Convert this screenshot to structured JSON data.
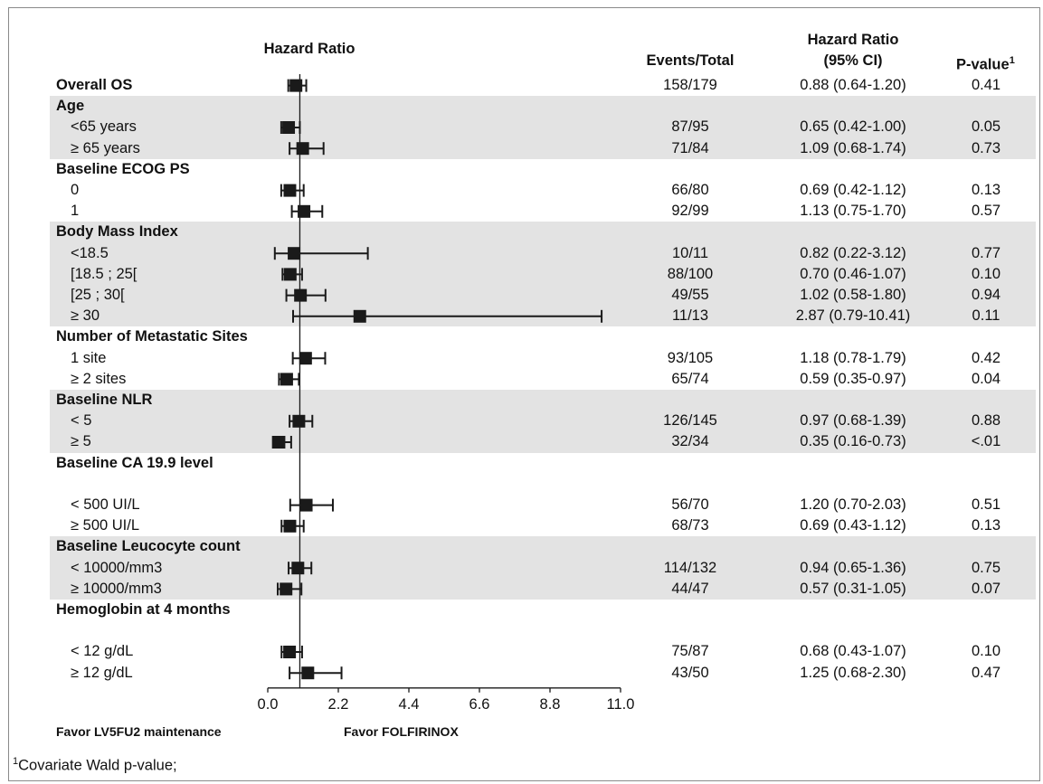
{
  "headers": {
    "hazard_ratio_plot": "Hazard Ratio",
    "events_total": "Events/Total",
    "hr_ci_line1": "Hazard Ratio",
    "hr_ci_line2": "(95% CI)",
    "p_value": "P-value",
    "p_value_sup": "1"
  },
  "chart_data": {
    "type": "forest",
    "x_ticks": [
      "0.0",
      "2.2",
      "4.4",
      "6.6",
      "8.8",
      "11.0"
    ],
    "xlim": [
      0,
      11
    ],
    "reference_line": 1.0,
    "favor_left": "Favor LV5FU2 maintenance",
    "favor_right": "Favor FOLFIRINOX",
    "rows": [
      {
        "label": "Overall OS",
        "kind": "group",
        "hr": 0.88,
        "lo": 0.64,
        "hi": 1.2,
        "events": "158/179",
        "ci_text": "0.88 (0.64-1.20)",
        "p": "0.41",
        "shaded": false
      },
      {
        "label": "Age",
        "kind": "group",
        "shaded": true
      },
      {
        "label": "<65 years",
        "kind": "sub",
        "hr": 0.65,
        "lo": 0.42,
        "hi": 1.0,
        "events": "87/95",
        "ci_text": "0.65 (0.42-1.00)",
        "p": "0.05",
        "shaded": true
      },
      {
        "label": "≥ 65 years",
        "kind": "sub",
        "hr": 1.09,
        "lo": 0.68,
        "hi": 1.74,
        "events": "71/84",
        "ci_text": "1.09 (0.68-1.74)",
        "p": "0.73",
        "shaded": true
      },
      {
        "label": "Baseline ECOG PS",
        "kind": "group",
        "shaded": false
      },
      {
        "label": "0",
        "kind": "sub",
        "hr": 0.69,
        "lo": 0.42,
        "hi": 1.12,
        "events": "66/80",
        "ci_text": "0.69 (0.42-1.12)",
        "p": "0.13",
        "shaded": false
      },
      {
        "label": "1",
        "kind": "sub",
        "hr": 1.13,
        "lo": 0.75,
        "hi": 1.7,
        "events": "92/99",
        "ci_text": "1.13 (0.75-1.70)",
        "p": "0.57",
        "shaded": false
      },
      {
        "label": "Body Mass Index",
        "kind": "group",
        "shaded": true
      },
      {
        "label": "<18.5",
        "kind": "sub",
        "hr": 0.82,
        "lo": 0.22,
        "hi": 3.12,
        "events": "10/11",
        "ci_text": "0.82 (0.22-3.12)",
        "p": "0.77",
        "shaded": true
      },
      {
        "label": "[18.5 ; 25[",
        "kind": "sub",
        "hr": 0.7,
        "lo": 0.46,
        "hi": 1.07,
        "events": "88/100",
        "ci_text": "0.70 (0.46-1.07)",
        "p": "0.10",
        "shaded": true
      },
      {
        "label": "[25 ; 30[",
        "kind": "sub",
        "hr": 1.02,
        "lo": 0.58,
        "hi": 1.8,
        "events": "49/55",
        "ci_text": "1.02 (0.58-1.80)",
        "p": "0.94",
        "shaded": true
      },
      {
        "label": "≥ 30",
        "kind": "sub",
        "hr": 2.87,
        "lo": 0.79,
        "hi": 10.41,
        "events": "11/13",
        "ci_text": "2.87 (0.79-10.41)",
        "p": "0.11",
        "shaded": true
      },
      {
        "label": "Number of Metastatic Sites",
        "kind": "group",
        "shaded": false
      },
      {
        "label": "1 site",
        "kind": "sub",
        "hr": 1.18,
        "lo": 0.78,
        "hi": 1.79,
        "events": "93/105",
        "ci_text": "1.18 (0.78-1.79)",
        "p": "0.42",
        "shaded": false
      },
      {
        "label": "≥ 2 sites",
        "kind": "sub",
        "hr": 0.59,
        "lo": 0.35,
        "hi": 0.97,
        "events": "65/74",
        "ci_text": "0.59 (0.35-0.97)",
        "p": "0.04",
        "shaded": false
      },
      {
        "label": "Baseline NLR",
        "kind": "group",
        "shaded": true
      },
      {
        "label": "< 5",
        "kind": "sub",
        "hr": 0.97,
        "lo": 0.68,
        "hi": 1.39,
        "events": "126/145",
        "ci_text": "0.97 (0.68-1.39)",
        "p": "0.88",
        "shaded": true
      },
      {
        "label": "≥ 5",
        "kind": "sub",
        "hr": 0.35,
        "lo": 0.16,
        "hi": 0.73,
        "events": "32/34",
        "ci_text": "0.35 (0.16-0.73)",
        "p": "<.01",
        "shaded": true
      },
      {
        "label": "Baseline CA 19.9 level",
        "kind": "group",
        "shaded": false
      },
      {
        "label": "",
        "kind": "blank",
        "shaded": false
      },
      {
        "label": "< 500 UI/L",
        "kind": "sub",
        "hr": 1.2,
        "lo": 0.7,
        "hi": 2.03,
        "events": "56/70",
        "ci_text": "1.20 (0.70-2.03)",
        "p": "0.51",
        "shaded": false
      },
      {
        "label": "≥ 500 UI/L",
        "kind": "sub",
        "hr": 0.69,
        "lo": 0.43,
        "hi": 1.12,
        "events": "68/73",
        "ci_text": "0.69 (0.43-1.12)",
        "p": "0.13",
        "shaded": false
      },
      {
        "label": "Baseline Leucocyte count",
        "kind": "group",
        "shaded": true
      },
      {
        "label": "< 10000/mm3",
        "kind": "sub",
        "hr": 0.94,
        "lo": 0.65,
        "hi": 1.36,
        "events": "114/132",
        "ci_text": "0.94 (0.65-1.36)",
        "p": "0.75",
        "shaded": true
      },
      {
        "label": "≥ 10000/mm3",
        "kind": "sub",
        "hr": 0.57,
        "lo": 0.31,
        "hi": 1.05,
        "events": "44/47",
        "ci_text": "0.57 (0.31-1.05)",
        "p": "0.07",
        "shaded": true
      },
      {
        "label": "Hemoglobin at 4 months",
        "kind": "group",
        "shaded": false
      },
      {
        "label": "",
        "kind": "blank",
        "shaded": false
      },
      {
        "label": "< 12 g/dL",
        "kind": "sub",
        "hr": 0.68,
        "lo": 0.43,
        "hi": 1.07,
        "events": "75/87",
        "ci_text": "0.68 (0.43-1.07)",
        "p": "0.10",
        "shaded": false
      },
      {
        "label": "≥ 12 g/dL",
        "kind": "sub",
        "hr": 1.25,
        "lo": 0.68,
        "hi": 2.3,
        "events": "43/50",
        "ci_text": "1.25 (0.68-2.30)",
        "p": "0.47",
        "shaded": false
      }
    ]
  },
  "footnote": {
    "sup": "1",
    "text": "Covariate Wald p-value;"
  }
}
